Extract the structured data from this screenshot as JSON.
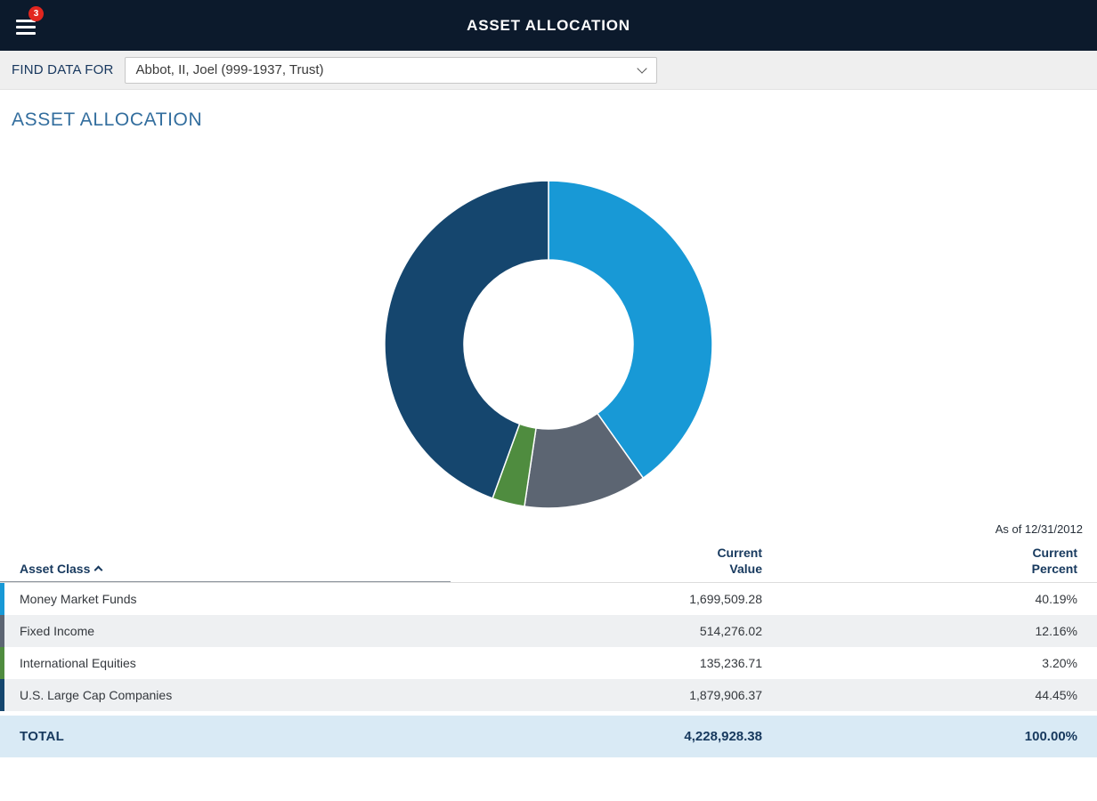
{
  "topbar": {
    "title": "ASSET ALLOCATION",
    "badge_count": "3"
  },
  "find_data": {
    "label": "FIND DATA FOR",
    "selected": "Abbot, II, Joel (999-1937, Trust)"
  },
  "page": {
    "heading": "ASSET ALLOCATION",
    "as_of": "As of 12/31/2012"
  },
  "chart_data": {
    "type": "pie",
    "donut": true,
    "title": "Asset Allocation",
    "start_angle_deg": 0,
    "direction": "clockwise",
    "slices": [
      {
        "label": "Money Market Funds",
        "value": 40.19,
        "amount": 1699509.28,
        "color": "#1899d6"
      },
      {
        "label": "Fixed Income",
        "value": 12.16,
        "amount": 514276.02,
        "color": "#5c6572"
      },
      {
        "label": "International Equities",
        "value": 3.2,
        "amount": 135236.71,
        "color": "#4f8c3f"
      },
      {
        "label": "U.S. Large Cap Companies",
        "value": 44.45,
        "amount": 1879906.37,
        "color": "#15466e"
      }
    ]
  },
  "table": {
    "headers": {
      "asset_class": "Asset Class",
      "value_line1": "Current",
      "value_line2": "Value",
      "percent_line1": "Current",
      "percent_line2": "Percent"
    },
    "rows": [
      {
        "asset_class": "Money Market Funds",
        "current_value": "1,699,509.28",
        "current_percent": "40.19%",
        "color": "#1899d6",
        "shaded": false
      },
      {
        "asset_class": "Fixed Income",
        "current_value": "514,276.02",
        "current_percent": "12.16%",
        "color": "#5c6572",
        "shaded": true
      },
      {
        "asset_class": "International Equities",
        "current_value": "135,236.71",
        "current_percent": "3.20%",
        "color": "#4f8c3f",
        "shaded": false
      },
      {
        "asset_class": "U.S. Large Cap Companies",
        "current_value": "1,879,906.37",
        "current_percent": "44.45%",
        "color": "#15466e",
        "shaded": true
      }
    ],
    "total": {
      "label": "TOTAL",
      "value": "4,228,928.38",
      "percent": "100.00%"
    }
  }
}
